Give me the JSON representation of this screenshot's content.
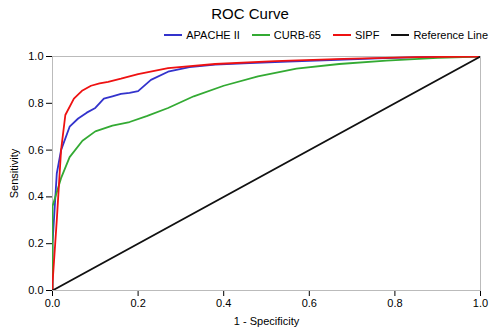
{
  "chart_data": {
    "type": "line",
    "title": "ROC Curve",
    "xlabel": "1 - Specificity",
    "ylabel": "Sensitivity",
    "xlim": [
      0.0,
      1.0
    ],
    "ylim": [
      0.0,
      1.0
    ],
    "xticks": [
      {
        "value": 0.0,
        "label": "0.0"
      },
      0.2,
      0.4,
      0.6,
      0.8,
      {
        "value": 1.0,
        "label": "1.0"
      }
    ],
    "yticks": [
      {
        "value": 0.0,
        "label": "0.0"
      },
      0.2,
      0.4,
      0.6,
      0.8,
      {
        "value": 1.0,
        "label": "1.0"
      }
    ],
    "grid": false,
    "legend": "upper right",
    "series": [
      {
        "name": "APACHE II",
        "color": "#3333CC",
        "x": [
          0.0,
          0.0,
          0.01,
          0.02,
          0.04,
          0.06,
          0.08,
          0.1,
          0.12,
          0.14,
          0.16,
          0.18,
          0.2,
          0.23,
          0.27,
          0.32,
          0.38,
          0.46,
          0.55,
          0.65,
          0.76,
          0.88,
          1.0
        ],
        "values": [
          0.0,
          0.2,
          0.5,
          0.6,
          0.7,
          0.735,
          0.76,
          0.78,
          0.82,
          0.83,
          0.84,
          0.845,
          0.852,
          0.9,
          0.935,
          0.955,
          0.965,
          0.972,
          0.978,
          0.985,
          0.992,
          0.998,
          1.0
        ]
      },
      {
        "name": "CURB-65",
        "color": "#33AA33",
        "x": [
          0.0,
          0.0,
          0.02,
          0.04,
          0.07,
          0.1,
          0.14,
          0.18,
          0.22,
          0.27,
          0.33,
          0.4,
          0.48,
          0.57,
          0.67,
          0.78,
          0.9,
          1.0
        ],
        "values": [
          0.0,
          0.36,
          0.48,
          0.57,
          0.64,
          0.68,
          0.705,
          0.72,
          0.745,
          0.78,
          0.83,
          0.875,
          0.915,
          0.948,
          0.968,
          0.982,
          0.994,
          1.0
        ]
      },
      {
        "name": "SIPF",
        "color": "#EE1111",
        "x": [
          0.0,
          0.0,
          0.01,
          0.02,
          0.03,
          0.05,
          0.07,
          0.09,
          0.11,
          0.13,
          0.16,
          0.2,
          0.27,
          0.38,
          0.52,
          0.68,
          0.85,
          1.0
        ],
        "values": [
          0.0,
          0.03,
          0.3,
          0.6,
          0.75,
          0.82,
          0.855,
          0.875,
          0.885,
          0.892,
          0.905,
          0.925,
          0.95,
          0.968,
          0.98,
          0.99,
          0.997,
          1.0
        ]
      },
      {
        "name": "Reference Line",
        "color": "#111111",
        "x": [
          0.0,
          1.0
        ],
        "values": [
          0.0,
          1.0
        ]
      }
    ]
  }
}
